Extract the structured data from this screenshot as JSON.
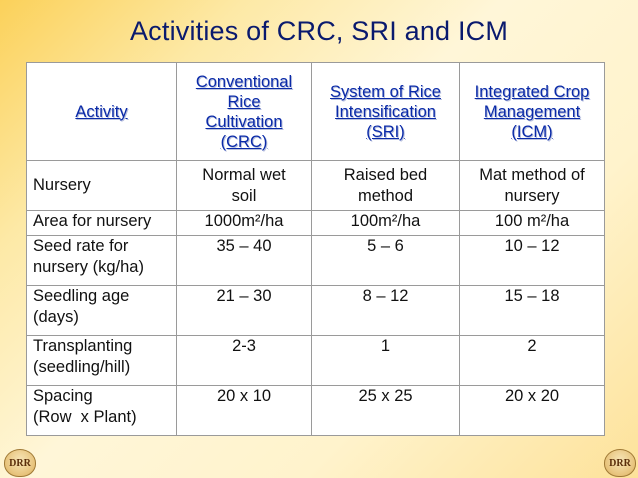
{
  "slide": {
    "title": "Activities of CRC, SRI and ICM"
  },
  "table": {
    "headers": [
      [
        "Activity"
      ],
      [
        "Conventional",
        "Rice",
        "Cultivation",
        "(CRC)"
      ],
      [
        "System of Rice",
        "Intensification",
        "(SRI)"
      ],
      [
        "Integrated Crop",
        "Management",
        "(ICM)"
      ]
    ],
    "rows": [
      {
        "label": [
          "Nursery"
        ],
        "crc": [
          "Normal wet",
          "soil"
        ],
        "sri": [
          "Raised bed",
          "method"
        ],
        "icm": [
          "Mat method of",
          "nursery"
        ]
      },
      {
        "label": [
          "Area for nursery"
        ],
        "crc": [
          "1000m²/ha"
        ],
        "sri": [
          "100m²/ha"
        ],
        "icm": [
          "100 m²/ha"
        ]
      },
      {
        "label": [
          "Seed rate for",
          "nursery (kg/ha)"
        ],
        "crc": [
          "35 – 40"
        ],
        "sri": [
          "5 – 6"
        ],
        "icm": [
          "10 – 12"
        ]
      },
      {
        "label": [
          "Seedling age",
          "(days)"
        ],
        "crc": [
          "21 – 30"
        ],
        "sri": [
          "8 – 12"
        ],
        "icm": [
          "15 – 18"
        ]
      },
      {
        "label": [
          "Transplanting",
          "(seedling/hill)"
        ],
        "crc": [
          "2-3"
        ],
        "sri": [
          "1"
        ],
        "icm": [
          "2"
        ]
      },
      {
        "label": [
          "Spacing",
          "(Row  x Plant)"
        ],
        "crc": [
          "20 x 10"
        ],
        "sri": [
          "25 x 25"
        ],
        "icm": [
          "20 x 20"
        ]
      }
    ]
  },
  "logos": {
    "left_text": "DRR",
    "right_text": "DRR"
  }
}
